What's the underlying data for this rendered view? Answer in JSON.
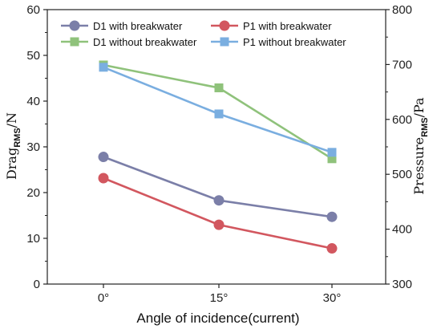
{
  "chart_data": {
    "type": "line",
    "title": "",
    "xlabel": "Angle of incidence(current)",
    "ylabel_left": {
      "base": "Drag",
      "sub": "RMS",
      "unit": "/N"
    },
    "ylabel_right": {
      "base": "Pressure",
      "sub": "RMS",
      "unit": "/Pa"
    },
    "categories": [
      "0°",
      "15°",
      "30°"
    ],
    "ylim_left": [
      0,
      60
    ],
    "ylim_right": [
      300,
      800
    ],
    "yticks_left": [
      "0",
      "10",
      "20",
      "30",
      "40",
      "50",
      "60"
    ],
    "yticks_right": [
      "300",
      "400",
      "500",
      "600",
      "700",
      "800"
    ],
    "grid": false,
    "legend_placement": "top",
    "series": [
      {
        "name": "D1 with breakwater",
        "axis": "left",
        "marker": "circle",
        "color": "#7b7fa8",
        "values": [
          27.8,
          18.3,
          14.7
        ]
      },
      {
        "name": "P1 with breakwater",
        "axis": "right",
        "marker": "circle",
        "color": "#d2575f",
        "values": [
          493,
          408,
          365
        ]
      },
      {
        "name": "D1 without breakwater",
        "axis": "left",
        "marker": "square",
        "color": "#8fc27b",
        "values": [
          47.9,
          42.9,
          27.4
        ]
      },
      {
        "name": "P1 without breakwater",
        "axis": "right",
        "marker": "square",
        "color": "#7aaee0",
        "values": [
          695,
          610,
          540
        ]
      }
    ]
  }
}
